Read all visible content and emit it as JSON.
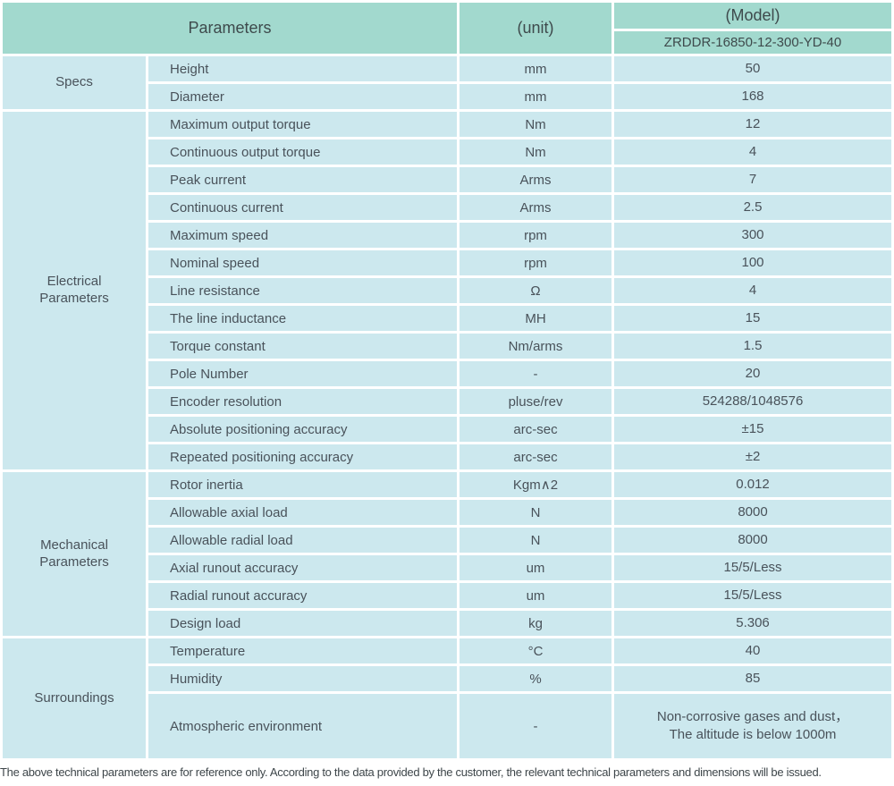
{
  "header": {
    "parameters_label": "Parameters",
    "unit_label": "(unit)",
    "model_label": "(Model)",
    "model_value": "ZRDDR-16850-12-300-YD-40"
  },
  "sections": [
    {
      "group": "Specs",
      "rows": [
        {
          "name": "Height",
          "unit": "mm",
          "value": "50"
        },
        {
          "name": "Diameter",
          "unit": "mm",
          "value": "168"
        }
      ]
    },
    {
      "group": "Electrical Parameters",
      "rows": [
        {
          "name": "Maximum output torque",
          "unit": "Nm",
          "value": "12"
        },
        {
          "name": "Continuous output torque",
          "unit": "Nm",
          "value": "4"
        },
        {
          "name": "Peak current",
          "unit": "Arms",
          "value": "7"
        },
        {
          "name": "Continuous current",
          "unit": "Arms",
          "value": "2.5"
        },
        {
          "name": "Maximum speed",
          "unit": "rpm",
          "value": "300"
        },
        {
          "name": "Nominal speed",
          "unit": "rpm",
          "value": "100"
        },
        {
          "name": "Line resistance",
          "unit": "Ω",
          "value": "4"
        },
        {
          "name": "The line inductance",
          "unit": "MH",
          "value": "15"
        },
        {
          "name": "Torque constant",
          "unit": "Nm/arms",
          "value": "1.5"
        },
        {
          "name": "Pole Number",
          "unit": "-",
          "value": "20"
        },
        {
          "name": "Encoder resolution",
          "unit": "pluse/rev",
          "value": "524288/1048576"
        },
        {
          "name": "Absolute positioning accuracy",
          "unit": "arc-sec",
          "value": "±15"
        },
        {
          "name": "Repeated positioning accuracy",
          "unit": "arc-sec",
          "value": "±2"
        }
      ]
    },
    {
      "group": "Mechanical Parameters",
      "rows": [
        {
          "name": "Rotor inertia",
          "unit": "Kgm∧2",
          "value": "0.012"
        },
        {
          "name": "Allowable axial load",
          "unit": "N",
          "value": "8000"
        },
        {
          "name": "Allowable radial load",
          "unit": "N",
          "value": "8000"
        },
        {
          "name": "Axial runout accuracy",
          "unit": "um",
          "value": "15/5/Less"
        },
        {
          "name": "Radial runout accuracy",
          "unit": "um",
          "value": "15/5/Less"
        },
        {
          "name": "Design load",
          "unit": "kg",
          "value": "5.306"
        }
      ]
    },
    {
      "group": "Surroundings",
      "rows": [
        {
          "name": "Temperature",
          "unit": "°C",
          "value": "40"
        },
        {
          "name": "Humidity",
          "unit": "%",
          "value": "85"
        },
        {
          "name": "Atmospheric environment",
          "unit": "-",
          "value": "Non-corrosive gases and dust，\nThe altitude is below 1000m",
          "tall": true
        }
      ]
    }
  ],
  "footer": {
    "note": "The above technical parameters are for reference only. According to the data provided by the customer, the relevant technical parameters and dimensions will be issued."
  },
  "colors": {
    "header_bg": "#a2d9ce",
    "row_bg": "#cce8ee",
    "text": "#49525a"
  }
}
